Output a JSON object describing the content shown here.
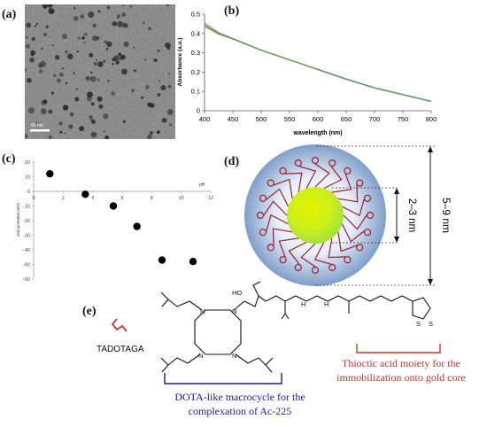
{
  "panels": {
    "a": "(a)",
    "b": "(b)",
    "c": "(c)",
    "d": "(d)",
    "e": "(e)"
  },
  "tem": {
    "scalebar_label": "50 nm"
  },
  "chart_data": [
    {
      "id": "b",
      "type": "line",
      "xlabel": "wavelength (nm)",
      "ylabel": "Absorbance (a.u.)",
      "xlim": [
        400,
        800
      ],
      "ylim": [
        0,
        0.5
      ],
      "xticks": [
        400,
        450,
        500,
        550,
        600,
        650,
        700,
        750,
        800
      ],
      "yticks": [
        0,
        0.1,
        0.2,
        0.3,
        0.4,
        0.5
      ],
      "grid": false,
      "series": [
        {
          "color": "#8f8f8f",
          "x": [
            400,
            425,
            450,
            500,
            550,
            600,
            650,
            700,
            750,
            800
          ],
          "y": [
            0.455,
            0.405,
            0.375,
            0.315,
            0.265,
            0.215,
            0.165,
            0.12,
            0.085,
            0.05
          ]
        },
        {
          "color": "#d6a83a",
          "x": [
            400,
            425,
            450,
            500,
            550,
            600,
            650,
            700,
            750,
            800
          ],
          "y": [
            0.435,
            0.395,
            0.37,
            0.312,
            0.262,
            0.213,
            0.163,
            0.118,
            0.083,
            0.048
          ]
        },
        {
          "color": "#4a6fa5",
          "x": [
            400,
            425,
            450,
            500,
            550,
            600,
            650,
            700,
            750,
            800
          ],
          "y": [
            0.445,
            0.4,
            0.372,
            0.313,
            0.263,
            0.214,
            0.164,
            0.119,
            0.084,
            0.049
          ]
        },
        {
          "color": "#6aa84f",
          "x": [
            400,
            425,
            450,
            500,
            550,
            600,
            650,
            700,
            750,
            800
          ],
          "y": [
            0.44,
            0.398,
            0.371,
            0.314,
            0.264,
            0.212,
            0.162,
            0.117,
            0.082,
            0.047
          ]
        }
      ]
    },
    {
      "id": "c",
      "type": "scatter",
      "xlabel": "pH",
      "ylabel": "zeta potential (mV)",
      "xlim": [
        0,
        12
      ],
      "ylim": [
        -60,
        20
      ],
      "xticks": [
        0,
        2,
        4,
        6,
        8,
        10,
        12
      ],
      "yticks": [
        20,
        10,
        0,
        -10,
        -20,
        -30,
        -40,
        -50,
        -60
      ],
      "grid": false,
      "x": [
        1.1,
        3.5,
        5.4,
        7.0,
        8.7,
        10.8
      ],
      "y": [
        12,
        -2,
        -10,
        -24,
        -47,
        -48
      ]
    }
  ],
  "diagram": {
    "core_label": "2–3 nm",
    "total_label": "5–9 nm"
  },
  "structure": {
    "name": "TADOTAGA",
    "acid_label": "HO",
    "nh_label": "H",
    "n_label": "N",
    "s_label": "S",
    "dota_caption_1": "DOTA-like macrocycle for the",
    "dota_caption_2": "complexation of Ac-225",
    "thioctic_caption_1": "Thioctic acid moiety for the",
    "thioctic_caption_2": "immobilization onto gold core",
    "dota_color": "#1a1aa8",
    "thioctic_color": "#c0392b"
  }
}
